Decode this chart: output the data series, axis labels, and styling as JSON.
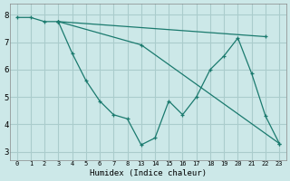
{
  "background_color": "#cce8e8",
  "grid_color": "#aacccc",
  "line_color": "#1a7a6e",
  "xlabel": "Humidex (Indice chaleur)",
  "xlim": [
    -0.5,
    19.5
  ],
  "ylim": [
    2.7,
    8.4
  ],
  "yticks": [
    3,
    4,
    5,
    6,
    7,
    8
  ],
  "xtick_positions": [
    0,
    1,
    2,
    3,
    4,
    5,
    6,
    7,
    8,
    9,
    10,
    11,
    12,
    13,
    14,
    15,
    16,
    17,
    18,
    19
  ],
  "xtick_labels": [
    "0",
    "1",
    "2",
    "3",
    "4",
    "5",
    "6",
    "7",
    "8",
    "13",
    "14",
    "15",
    "16",
    "17",
    "18",
    "19",
    "20",
    "21",
    "22",
    "23"
  ],
  "series": [
    {
      "xv": [
        0,
        1,
        2,
        3
      ],
      "y": [
        7.9,
        7.9,
        7.75,
        7.75
      ]
    },
    {
      "xv": [
        3,
        4,
        5,
        6,
        7,
        8,
        9,
        10,
        11,
        12,
        13,
        14,
        15,
        16,
        17,
        18,
        19
      ],
      "y": [
        7.75,
        6.6,
        5.6,
        4.85,
        4.35,
        4.2,
        3.25,
        3.5,
        4.85,
        4.35,
        5.0,
        6.0,
        6.5,
        7.15,
        5.85,
        4.3,
        3.3
      ]
    },
    {
      "xv": [
        3,
        18
      ],
      "y": [
        7.75,
        7.2
      ]
    },
    {
      "xv": [
        3,
        9,
        19
      ],
      "y": [
        7.75,
        6.9,
        3.3
      ]
    }
  ]
}
